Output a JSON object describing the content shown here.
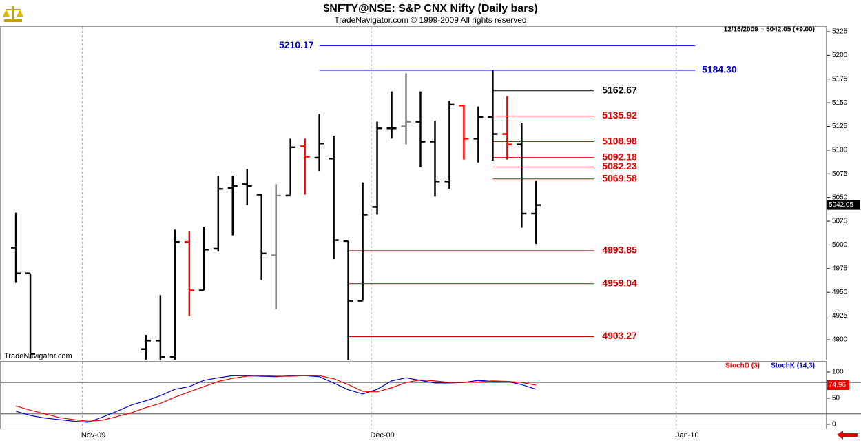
{
  "header": {
    "title": "$NFTY@NSE:  S&P CNX Nifty  (Daily bars)",
    "subtitle": "TradeNavigator.com © 1999-2009 All rights reserved",
    "status": "12/16/2009 = 5042.05 (+9.00)",
    "watermark": "TradeNavigator.com"
  },
  "chart_data": [
    {
      "type": "ohlc",
      "categories": [
        null,
        null,
        null,
        null,
        null,
        null,
        null,
        null,
        null,
        null,
        null,
        null,
        null,
        null,
        null,
        null,
        null,
        null,
        null,
        null,
        null,
        null,
        null,
        null,
        null,
        null,
        null,
        null,
        null,
        null,
        null,
        null,
        null,
        null,
        null,
        null,
        null
      ],
      "xlim": [
        -1.1,
        56.1
      ],
      "xticks": [
        {
          "value": 4.6,
          "label": "Nov-09"
        },
        {
          "value": 24.6,
          "label": "Dec-09"
        },
        {
          "value": 45.7,
          "label": "Jan-10"
        }
      ],
      "ylim": [
        4878.9,
        5230.8
      ],
      "yticks": [
        4900,
        4925,
        4950,
        4975,
        5000,
        5025,
        5050,
        5075,
        5100,
        5125,
        5150,
        5175,
        5200,
        5225
      ],
      "series": [
        {
          "name": "open",
          "values": [
            4997,
            4970,
            null,
            null,
            null,
            null,
            null,
            null,
            null,
            4890,
            4899,
            4882,
            5003,
            4952,
            4996,
            5060,
            5064,
            5053,
            4989,
            5052,
            5104,
            5092,
            5091,
            5004,
            4941,
            5040,
            5123,
            5125,
            5130,
            5109,
            5067,
            5147,
            5112,
            5135,
            5117,
            5106,
            5033
          ]
        },
        {
          "name": "high",
          "values": [
            5034,
            4970,
            null,
            null,
            null,
            null,
            null,
            null,
            null,
            4905,
            4947,
            5016,
            5014,
            5019,
            5073,
            5073,
            5080,
            5054,
            5064,
            5112,
            5112,
            5138,
            5115,
            5004,
            5066,
            5130,
            5162,
            5181,
            5162,
            5131,
            5152,
            5148,
            5146,
            5184,
            5157,
            5129,
            5068
          ]
        },
        {
          "name": "low",
          "values": [
            4960,
            4880,
            null,
            null,
            null,
            null,
            null,
            null,
            null,
            4879,
            4875,
            4875,
            4925,
            4952,
            4993,
            5010,
            5042,
            4963,
            4932,
            5053,
            5053,
            5078,
            4985,
            4875,
            4941,
            5032,
            5112,
            5106,
            5082,
            5051,
            5059,
            5090,
            5087,
            5089,
            5090,
            5018,
            5001
          ]
        },
        {
          "name": "close",
          "values": [
            4970,
            4885,
            null,
            null,
            null,
            null,
            null,
            null,
            null,
            4899,
            4882,
            5003,
            4952,
            4995,
            5059,
            5062,
            5062,
            4991,
            5052,
            5103,
            5093,
            5107,
            5005,
            4941,
            5032,
            5123,
            5123,
            5130,
            5109,
            5067,
            5148,
            5112,
            5135,
            5117,
            5106,
            5033,
            5042.05
          ]
        }
      ],
      "colors": [
        "#000000",
        "#000000",
        null,
        null,
        null,
        null,
        null,
        null,
        null,
        "#000000",
        "#000000",
        "#000000",
        "#ff0000",
        "#000000",
        "#000000",
        "#000000",
        "#000000",
        "#000000",
        "#808080",
        "#000000",
        "#ff0000",
        "#000000",
        "#000000",
        "#000000",
        "#000000",
        "#000000",
        "#000000",
        "#808080",
        "#000000",
        "#000000",
        "#000000",
        "#ff0000",
        "#000000",
        "#000000",
        "#ff0000",
        "#000000",
        "#000000"
      ],
      "levels": [
        {
          "value": 5210.17,
          "color": "#0000cc",
          "start": 21,
          "end": 47
        },
        {
          "value": 5184.3,
          "color": "#0000cc",
          "start": 21,
          "end": 47
        },
        {
          "value": 5162.67,
          "color": "#000000",
          "start": 33,
          "end": 40
        },
        {
          "value": 5135.92,
          "color": "#ee0000",
          "start": 33,
          "end": 40
        },
        {
          "value": 5108.98,
          "color": "#ee0000",
          "start": 33,
          "end": 40
        },
        {
          "value": 5092.18,
          "color": "#ee0000",
          "start": 33,
          "end": 40
        },
        {
          "value": 5082.23,
          "color": "#ee0000",
          "start": 33,
          "end": 40
        },
        {
          "value": 5069.58,
          "color": "#ee0000",
          "start": 33,
          "end": 40
        },
        {
          "value": 4993.85,
          "color": "#cc0000",
          "start": 23,
          "end": 40
        },
        {
          "value": 4959.04,
          "color": "#cc0000",
          "start": 23,
          "end": 40
        },
        {
          "value": 4903.27,
          "color": "#cc0000",
          "start": 23,
          "end": 40
        }
      ]
    },
    {
      "type": "line",
      "ylim": [
        -8,
        121
      ],
      "yticks": [
        0,
        50,
        100
      ],
      "levels": [
        20,
        80
      ],
      "series": [
        {
          "name": "StochD (3)",
          "color": "#ee0000",
          "values": [
            35,
            27,
            20,
            13,
            9,
            6,
            8,
            15,
            22,
            32,
            40,
            52,
            62,
            72,
            82,
            88,
            92,
            93,
            92,
            92,
            93,
            93,
            87,
            76,
            63,
            62,
            70,
            80,
            85,
            83,
            80,
            80,
            81,
            83,
            82,
            80,
            74.96
          ]
        },
        {
          "name": "StochK (14,3)",
          "color": "#0000cc",
          "values": [
            25,
            17,
            12,
            9,
            6,
            4,
            14,
            25,
            37,
            45,
            55,
            67,
            72,
            84,
            89,
            93,
            93,
            92,
            91,
            93,
            93,
            91,
            79,
            66,
            58,
            67,
            83,
            89,
            84,
            79,
            79,
            80,
            84,
            82,
            82,
            76,
            67
          ]
        }
      ]
    }
  ]
}
